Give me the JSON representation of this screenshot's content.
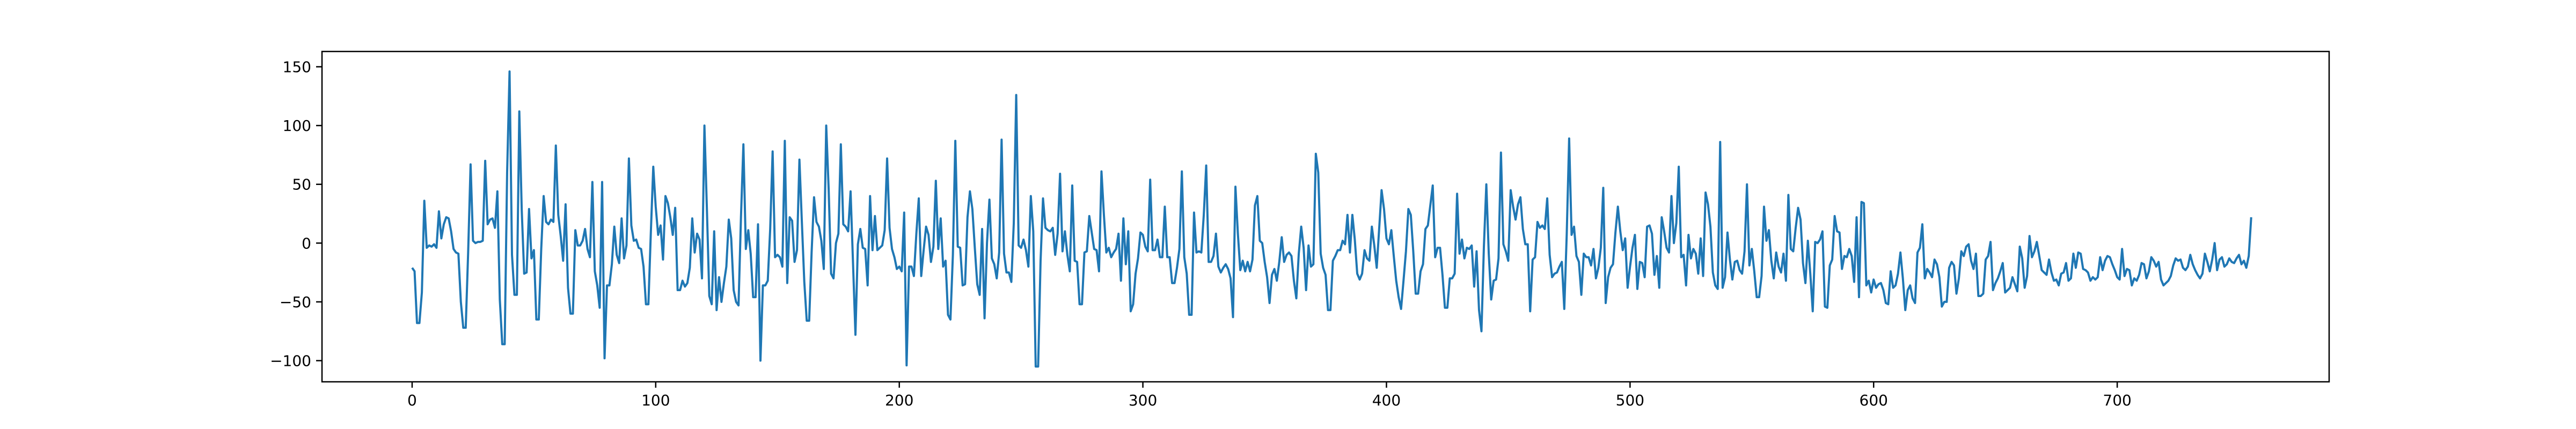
{
  "chart_data": {
    "type": "line",
    "title": "",
    "xlabel": "",
    "ylabel": "",
    "xlim": [
      -37,
      787
    ],
    "ylim": [
      -118,
      163
    ],
    "xticks": [
      0,
      100,
      200,
      300,
      400,
      500,
      600,
      700
    ],
    "yticks": [
      -100,
      -50,
      0,
      50,
      100,
      150
    ],
    "grid": false,
    "legend": "none",
    "series": [
      {
        "color": "#1f77b4",
        "x_start": 0,
        "x_step": 1,
        "values": [
          -21,
          -24,
          -68,
          -68,
          -42,
          36,
          -4,
          -2,
          -3,
          -1,
          -4,
          27,
          4,
          16,
          22,
          21,
          10,
          -5,
          -8,
          -9,
          -50,
          -72,
          -72,
          -8,
          67,
          2,
          0,
          1,
          1,
          2,
          70,
          16,
          20,
          21,
          13,
          44,
          -48,
          -86,
          -86,
          60,
          146,
          -10,
          -44,
          -44,
          112,
          28,
          -26,
          -25,
          29,
          -13,
          -6,
          -65,
          -65,
          -5,
          40,
          18,
          16,
          20,
          18,
          83,
          24,
          6,
          -15,
          33,
          -38,
          -60,
          -60,
          11,
          -2,
          -2,
          2,
          12,
          -5,
          -12,
          52,
          -24,
          -36,
          -55,
          52,
          -98,
          -36,
          -36,
          -18,
          14,
          -10,
          -17,
          21,
          -13,
          -2,
          72,
          15,
          2,
          3,
          -4,
          -5,
          -20,
          -52,
          -52,
          9,
          65,
          31,
          7,
          15,
          -14,
          40,
          34,
          22,
          7,
          30,
          -40,
          -40,
          -32,
          -37,
          -34,
          -21,
          21,
          -8,
          8,
          3,
          -30,
          100,
          30,
          -45,
          -52,
          10,
          -57,
          -29,
          -50,
          -34,
          -20,
          20,
          4,
          -40,
          -50,
          -53,
          22,
          84,
          -5,
          11,
          -9,
          -46,
          -46,
          16,
          -100,
          -36,
          -36,
          -32,
          12,
          78,
          -12,
          -10,
          -12,
          -20,
          87,
          -34,
          22,
          19,
          -16,
          -6,
          71,
          18,
          -33,
          -66,
          -66,
          -8,
          39,
          18,
          14,
          2,
          -22,
          100,
          46,
          -26,
          -30,
          0,
          8,
          84,
          16,
          14,
          10,
          44,
          -17,
          -78,
          -1,
          12,
          -4,
          -5,
          -36,
          40,
          -6,
          23,
          -6,
          -4,
          -2,
          11,
          72,
          13,
          -5,
          -12,
          -22,
          -20,
          -24,
          26,
          -104,
          -20,
          -20,
          -28,
          8,
          38,
          -28,
          -6,
          14,
          7,
          -16,
          -3,
          53,
          -5,
          21,
          -20,
          -15,
          -61,
          -65,
          -10,
          87,
          -3,
          -4,
          -36,
          -35,
          22,
          44,
          29,
          -4,
          -35,
          -44,
          12,
          -64,
          0,
          37,
          -13,
          -18,
          -30,
          -8,
          88,
          -9,
          -25,
          -25,
          -33,
          17,
          126,
          -2,
          -4,
          3,
          -6,
          -20,
          40,
          10,
          -105,
          -105,
          -15,
          38,
          13,
          11,
          10,
          13,
          -10,
          8,
          59,
          -7,
          10,
          -10,
          -24,
          49,
          -15,
          -16,
          -52,
          -52,
          -8,
          -7,
          23,
          9,
          -5,
          -6,
          -24,
          61,
          24,
          -8,
          -4,
          -12,
          -8,
          -5,
          8,
          -32,
          21,
          -18,
          10,
          -58,
          -52,
          -26,
          -13,
          9,
          7,
          -3,
          -7,
          54,
          -6,
          -6,
          3,
          -12,
          -12,
          31,
          -12,
          -12,
          -34,
          -34,
          -21,
          -5,
          61,
          -12,
          -26,
          -61,
          -61,
          26,
          -8,
          -7,
          -8,
          24,
          66,
          -16,
          -16,
          -11,
          8,
          -20,
          -25,
          -21,
          -18,
          -22,
          -30,
          -63,
          48,
          8,
          -23,
          -15,
          -24,
          -16,
          -24,
          -14,
          32,
          40,
          2,
          0,
          -16,
          -29,
          -51,
          -27,
          -22,
          -32,
          -16,
          5,
          -16,
          -10,
          -8,
          -11,
          -32,
          -47,
          -9,
          14,
          -4,
          -40,
          -2,
          -20,
          -18,
          76,
          60,
          -9,
          -21,
          -27,
          -57,
          -57,
          -15,
          -11,
          -6,
          -6,
          2,
          -1,
          24,
          -8,
          24,
          3,
          -26,
          -31,
          -26,
          -6,
          -13,
          -15,
          14,
          -2,
          -21,
          12,
          45,
          29,
          4,
          -1,
          11,
          -11,
          -32,
          -46,
          -56,
          -32,
          -7,
          29,
          24,
          -7,
          -43,
          -43,
          -24,
          -18,
          12,
          15,
          32,
          49,
          -12,
          -4,
          -4,
          -27,
          -55,
          -55,
          -30,
          -30,
          -26,
          42,
          -9,
          3,
          -13,
          -4,
          -5,
          -2,
          -37,
          -7,
          -57,
          -75,
          -3,
          50,
          -9,
          -48,
          -32,
          -31,
          -13,
          77,
          -1,
          -7,
          -15,
          45,
          31,
          20,
          33,
          39,
          12,
          -1,
          -1,
          -58,
          -14,
          -12,
          18,
          13,
          15,
          12,
          38,
          -10,
          -29,
          -26,
          -25,
          -20,
          -16,
          -56,
          7,
          89,
          7,
          14,
          -11,
          -16,
          -44,
          -9,
          -12,
          -12,
          -19,
          -5,
          -30,
          -21,
          -4,
          47,
          -51,
          -29,
          -21,
          -18,
          9,
          31,
          10,
          -6,
          4,
          -38,
          -20,
          -4,
          7,
          -39,
          -16,
          -17,
          -29,
          14,
          15,
          8,
          -27,
          -11,
          -38,
          22,
          10,
          -4,
          -8,
          40,
          0,
          17,
          65,
          -12,
          -10,
          -36,
          7,
          -13,
          -5,
          -9,
          -26,
          4,
          -28,
          43,
          33,
          14,
          -25,
          -36,
          -39,
          86,
          -38,
          -29,
          9,
          -14,
          -31,
          -16,
          -15,
          -23,
          -26,
          -7,
          50,
          -19,
          -5,
          -24,
          -46,
          -46,
          -28,
          31,
          2,
          11,
          -15,
          -30,
          -8,
          -20,
          -25,
          -9,
          -32,
          41,
          -5,
          -7,
          13,
          30,
          20,
          -17,
          -34,
          2,
          -26,
          -58,
          1,
          0,
          3,
          10,
          -54,
          -55,
          -19,
          -14,
          23,
          10,
          9,
          -22,
          -11,
          -12,
          -5,
          -11,
          -33,
          22,
          -46,
          35,
          34,
          -36,
          -32,
          -42,
          -31,
          -38,
          -35,
          -34,
          -40,
          -51,
          -52,
          -24,
          -38,
          -36,
          -26,
          -8,
          -30,
          -57,
          -40,
          -36,
          -47,
          -51,
          -8,
          -4,
          16,
          -30,
          -22,
          -25,
          -29,
          -14,
          -18,
          -29,
          -54,
          -50,
          -50,
          -21,
          -16,
          -19,
          -43,
          -30,
          -7,
          -11,
          -3,
          -1,
          -15,
          -22,
          -9,
          -45,
          -45,
          -43,
          -14,
          -11,
          1,
          -40,
          -34,
          -30,
          -24,
          -17,
          -42,
          -40,
          -38,
          -29,
          -35,
          -41,
          -3,
          -13,
          -38,
          -28,
          6,
          -12,
          -7,
          1,
          -11,
          -23,
          -25,
          -27,
          -14,
          -25,
          -32,
          -31,
          -36,
          -26,
          -25,
          -17,
          -32,
          -30,
          -9,
          -21,
          -8,
          -9,
          -22,
          -23,
          -25,
          -32,
          -29,
          -31,
          -29,
          -12,
          -23,
          -15,
          -11,
          -12,
          -18,
          -23,
          -29,
          -31,
          -5,
          -28,
          -22,
          -23,
          -36,
          -30,
          -32,
          -27,
          -17,
          -18,
          -30,
          -24,
          -12,
          -15,
          -20,
          -16,
          -31,
          -36,
          -34,
          -32,
          -28,
          -19,
          -13,
          -15,
          -14,
          -21,
          -23,
          -20,
          -10,
          -18,
          -23,
          -27,
          -30,
          -26,
          -9,
          -16,
          -24,
          -14,
          0,
          -23,
          -14,
          -12,
          -20,
          -18,
          -13,
          -16,
          -17,
          -13,
          -10,
          -18,
          -15,
          -21,
          -11,
          22
        ]
      }
    ]
  }
}
